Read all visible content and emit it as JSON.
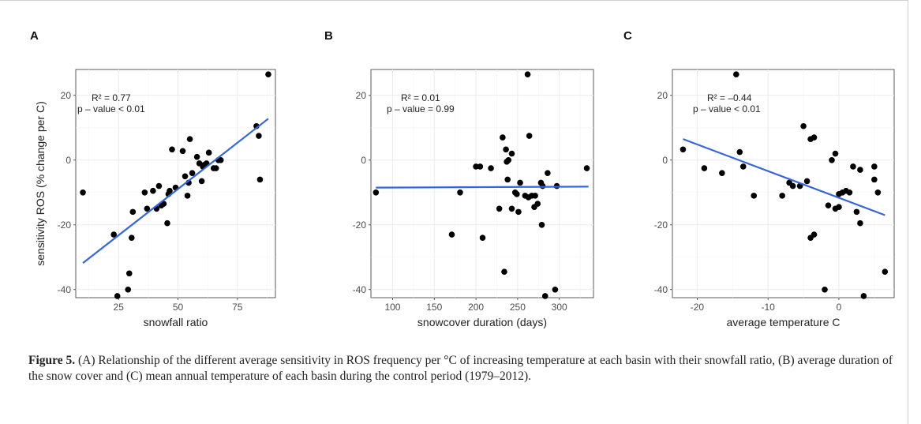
{
  "caption": {
    "label": "Figure 5.",
    "text": " (A) Relationship of the different average sensitivity in ROS frequency per °C of increasing temperature at each basin with their snowfall ratio, (B) average duration of the snow cover and (C) mean annual temperature of each basin during the control period (1979–2012)."
  },
  "style": {
    "point_color": "#000000",
    "line_color": "#3366dd",
    "grid_color": "#ebebeb"
  },
  "chart_data": [
    {
      "panel": "A",
      "type": "scatter",
      "xlabel": "snowfall ratio",
      "ylabel": "sensitivity ROS (% change per C)",
      "xlim": [
        7,
        91
      ],
      "ylim": [
        -42.5,
        28
      ],
      "xticks": [
        25,
        50,
        75
      ],
      "yticks": [
        -40,
        -20,
        0,
        20
      ],
      "annotation": {
        "r2": "R² = 0.77",
        "p": "p – value < 0.01"
      },
      "fit": {
        "x": [
          10,
          88
        ],
        "y": [
          -31.8,
          12.8
        ]
      },
      "points": {
        "x": [
          10,
          23,
          24.5,
          29,
          29.5,
          30.5,
          31,
          36,
          37,
          39.5,
          41,
          42,
          43,
          44,
          45.5,
          46,
          46.5,
          47.5,
          49,
          52,
          53,
          54,
          54.5,
          55,
          56,
          58,
          59,
          60,
          60.5,
          61,
          62,
          63,
          65,
          66,
          67,
          68,
          83,
          84,
          84.5,
          88
        ],
        "y": [
          -10,
          -23,
          -42,
          -40,
          -35,
          -24,
          -16,
          -10,
          -15,
          -9.5,
          -15,
          -8,
          -14,
          -13.5,
          -19.5,
          -10.5,
          -9.5,
          3.3,
          -8.5,
          2.8,
          -5,
          -11,
          -7,
          6.5,
          -4,
          1,
          -1,
          -6.5,
          -2,
          -1.5,
          -1,
          2.3,
          -2.5,
          -2.5,
          0,
          0,
          10.5,
          7.5,
          -6,
          26.5
        ]
      }
    },
    {
      "panel": "B",
      "type": "scatter",
      "xlabel": "snowcover duration (days)",
      "ylabel": "",
      "xlim": [
        74,
        341
      ],
      "ylim": [
        -42.5,
        28
      ],
      "xticks": [
        100,
        150,
        200,
        250,
        300
      ],
      "yticks": [
        -40,
        -20,
        0,
        20
      ],
      "annotation": {
        "r2": "R² = 0.01",
        "p": "p – value = 0.99"
      },
      "fit": {
        "x": [
          80,
          335
        ],
        "y": [
          -8.5,
          -8.2
        ]
      },
      "points": {
        "x": [
          80,
          171,
          181,
          200,
          205,
          208,
          218,
          228,
          232,
          234,
          236,
          237,
          238,
          239,
          243,
          243,
          247,
          249,
          251,
          253,
          259,
          262,
          263,
          264,
          267,
          270,
          271,
          274,
          278,
          279,
          280,
          283,
          286,
          295,
          297,
          333
        ],
        "y": [
          -10,
          -23,
          -10,
          -2,
          -2,
          -24,
          -2.5,
          -15,
          7,
          -34.5,
          3.3,
          -0.5,
          -6,
          0,
          2,
          -15,
          -10,
          -10.5,
          -16,
          -7,
          -11,
          26.5,
          -11.5,
          7.5,
          -11,
          -14.5,
          -11,
          -13.5,
          -7,
          -20,
          -8,
          -42,
          -4,
          -40,
          -8,
          -2.5
        ]
      }
    },
    {
      "panel": "C",
      "type": "scatter",
      "xlabel": "average temperature C",
      "ylabel": "",
      "xlim": [
        -23.5,
        7.8
      ],
      "ylim": [
        -42.5,
        28
      ],
      "xticks": [
        -20,
        -10,
        0
      ],
      "yticks": [
        -40,
        -20,
        0,
        20
      ],
      "annotation": {
        "r2": "R² = –0.44",
        "p": "p – value < 0.01"
      },
      "fit": {
        "x": [
          -22,
          6.5
        ],
        "y": [
          6.5,
          -17
        ]
      },
      "points": {
        "x": [
          -22,
          -19,
          -16.5,
          -14.5,
          -14,
          -13.5,
          -12,
          -8,
          -7,
          -6.5,
          -5.5,
          -5,
          -4.5,
          -4,
          -4,
          -3.5,
          -3.5,
          -2,
          -1.5,
          -1,
          -0.5,
          -0.5,
          0,
          0,
          0.5,
          1,
          1.5,
          2,
          2.5,
          3,
          3,
          3.5,
          5,
          5,
          5.5,
          6.5
        ],
        "y": [
          3.3,
          -2.5,
          -4,
          26.5,
          2.5,
          -2,
          -11,
          -11,
          -7,
          -8,
          -8,
          10.5,
          -6.5,
          6.5,
          -24,
          -23,
          7,
          -40,
          -14,
          0,
          2,
          -15,
          -10.5,
          -14.5,
          -10,
          -9.5,
          -10,
          -2,
          -16,
          -19.5,
          -3,
          -42,
          -6,
          -2,
          -10,
          -34.5
        ]
      }
    }
  ]
}
